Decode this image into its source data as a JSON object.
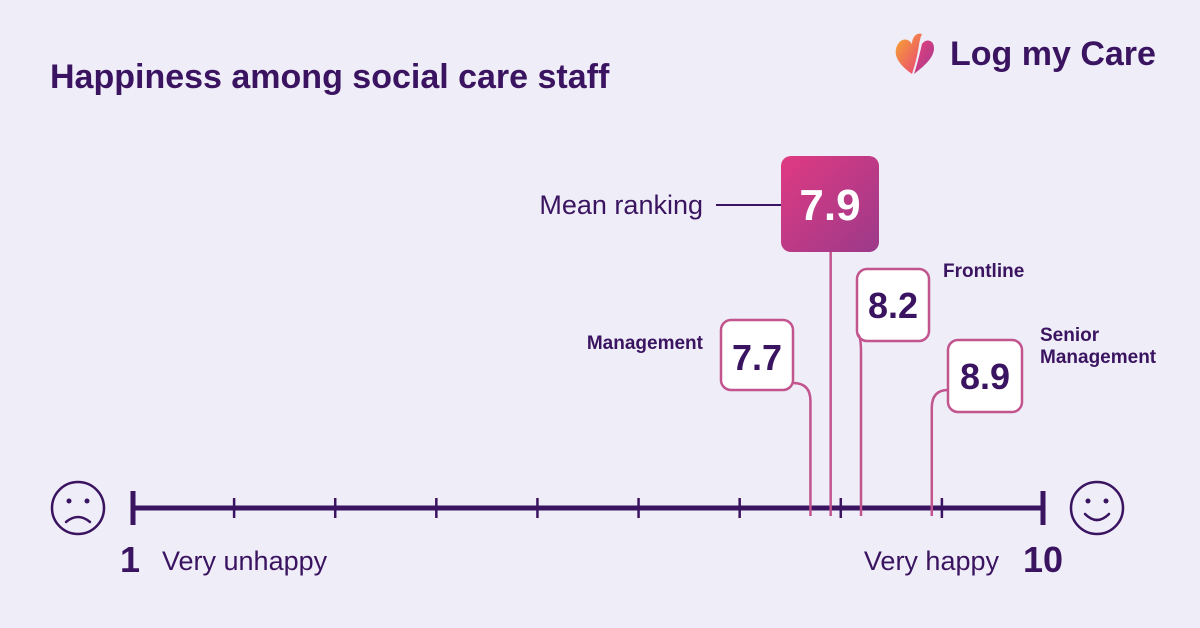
{
  "title": "Happiness among social care staff",
  "logo": {
    "text": "Log my Care",
    "icon": "heart-flame-logo-icon"
  },
  "colors": {
    "dark": "#3a1460",
    "accent_start": "#e03a82",
    "accent_end": "#9b3a8a",
    "connector": "#c2548e",
    "background": "#efedf7"
  },
  "chart_data": {
    "type": "scatter",
    "xlim": [
      1,
      10
    ],
    "ticks": [
      1,
      2,
      3,
      4,
      5,
      6,
      7,
      8,
      9,
      10
    ],
    "axis_end_labels": {
      "min": "1",
      "max": "10"
    },
    "scale_labels": {
      "low": "Very unhappy",
      "high": "Very happy"
    },
    "scale_icons": {
      "low": "sad-face-icon",
      "high": "happy-face-icon"
    },
    "mean": {
      "label": "Mean ranking",
      "value": 7.9,
      "display": "7.9"
    },
    "groups": [
      {
        "name": "Management",
        "value": 7.7,
        "display": "7.7"
      },
      {
        "name": "Frontline",
        "value": 8.2,
        "display": "8.2"
      },
      {
        "name": "Senior Management",
        "value": 8.9,
        "display": "8.9"
      }
    ]
  }
}
